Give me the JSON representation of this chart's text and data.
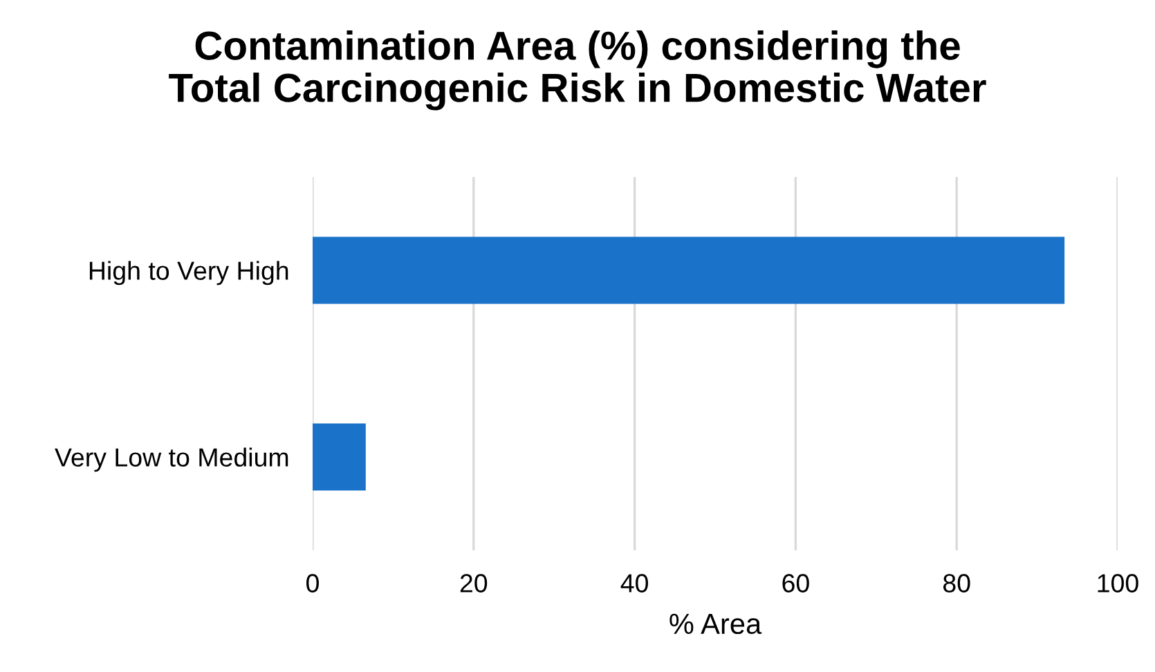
{
  "chart_data": {
    "type": "bar",
    "orientation": "horizontal",
    "title": "Contamination Area (%) considering the\nTotal Carcinogenic Risk in Domestic Water",
    "xlabel": "% Area",
    "categories": [
      "High to Very High",
      "Very Low to Medium"
    ],
    "values": [
      93.4,
      6.6
    ],
    "color": "#1a73c8",
    "xlim": [
      0,
      100
    ],
    "xticks": [
      0,
      20,
      40,
      60,
      80,
      100
    ],
    "grid": "x",
    "legend": false
  }
}
